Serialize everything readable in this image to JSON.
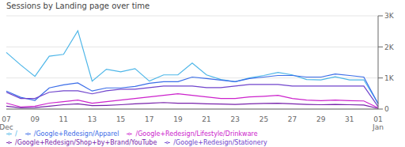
{
  "chart_data": {
    "type": "line",
    "title": "Sessions by Landing page over time",
    "categories": [
      "07\nDec",
      null,
      "09",
      null,
      "11",
      null,
      "13",
      null,
      "15",
      null,
      "17",
      null,
      "19",
      null,
      "21",
      null,
      "23",
      null,
      "25",
      null,
      "27",
      null,
      "29",
      null,
      "31",
      null,
      "01\nJan"
    ],
    "series": [
      {
        "name": "/",
        "color": "#4db6e8",
        "values": [
          1820,
          1420,
          1050,
          1700,
          1760,
          2520,
          900,
          1280,
          1200,
          1300,
          900,
          1100,
          1100,
          1480,
          1100,
          950,
          880,
          1000,
          1080,
          1180,
          1100,
          950,
          940,
          1040,
          940,
          940,
          180
        ]
      },
      {
        "name": "/Google+Redesign/Apparel",
        "color": "#3b6de8",
        "values": [
          580,
          380,
          280,
          680,
          780,
          840,
          580,
          680,
          680,
          730,
          830,
          880,
          880,
          1030,
          980,
          930,
          880,
          980,
          1030,
          1080,
          1080,
          1030,
          1030,
          1130,
          1080,
          1030,
          170
        ]
      },
      {
        "name": "/Google+Redesign/Stationery",
        "color": "#7044cc",
        "values": [
          540,
          340,
          340,
          540,
          590,
          590,
          490,
          590,
          640,
          640,
          690,
          740,
          740,
          740,
          690,
          690,
          740,
          790,
          790,
          790,
          740,
          740,
          740,
          740,
          740,
          740,
          80
        ]
      },
      {
        "name": "/Google+Redesign/Lifestyle/Drinkware",
        "color": "#cc22cc",
        "values": [
          190,
          70,
          90,
          190,
          240,
          290,
          190,
          240,
          290,
          340,
          390,
          440,
          490,
          440,
          390,
          340,
          340,
          390,
          410,
          440,
          340,
          290,
          270,
          290,
          270,
          260,
          40
        ]
      },
      {
        "name": "/Google+Redesign/Shop+by+Brand/YouTube",
        "color": "#7722aa",
        "values": [
          90,
          40,
          50,
          90,
          140,
          170,
          110,
          120,
          140,
          170,
          190,
          210,
          190,
          190,
          170,
          160,
          150,
          170,
          180,
          190,
          170,
          150,
          140,
          150,
          140,
          130,
          20
        ]
      }
    ],
    "ylim": [
      0,
      3000
    ],
    "yticks": [
      0,
      {
        "value": 1000,
        "label": "1K"
      },
      {
        "value": 2000,
        "label": "2K"
      },
      {
        "value": 3000,
        "label": "3K"
      }
    ],
    "grid": true,
    "legend": "lower left"
  }
}
